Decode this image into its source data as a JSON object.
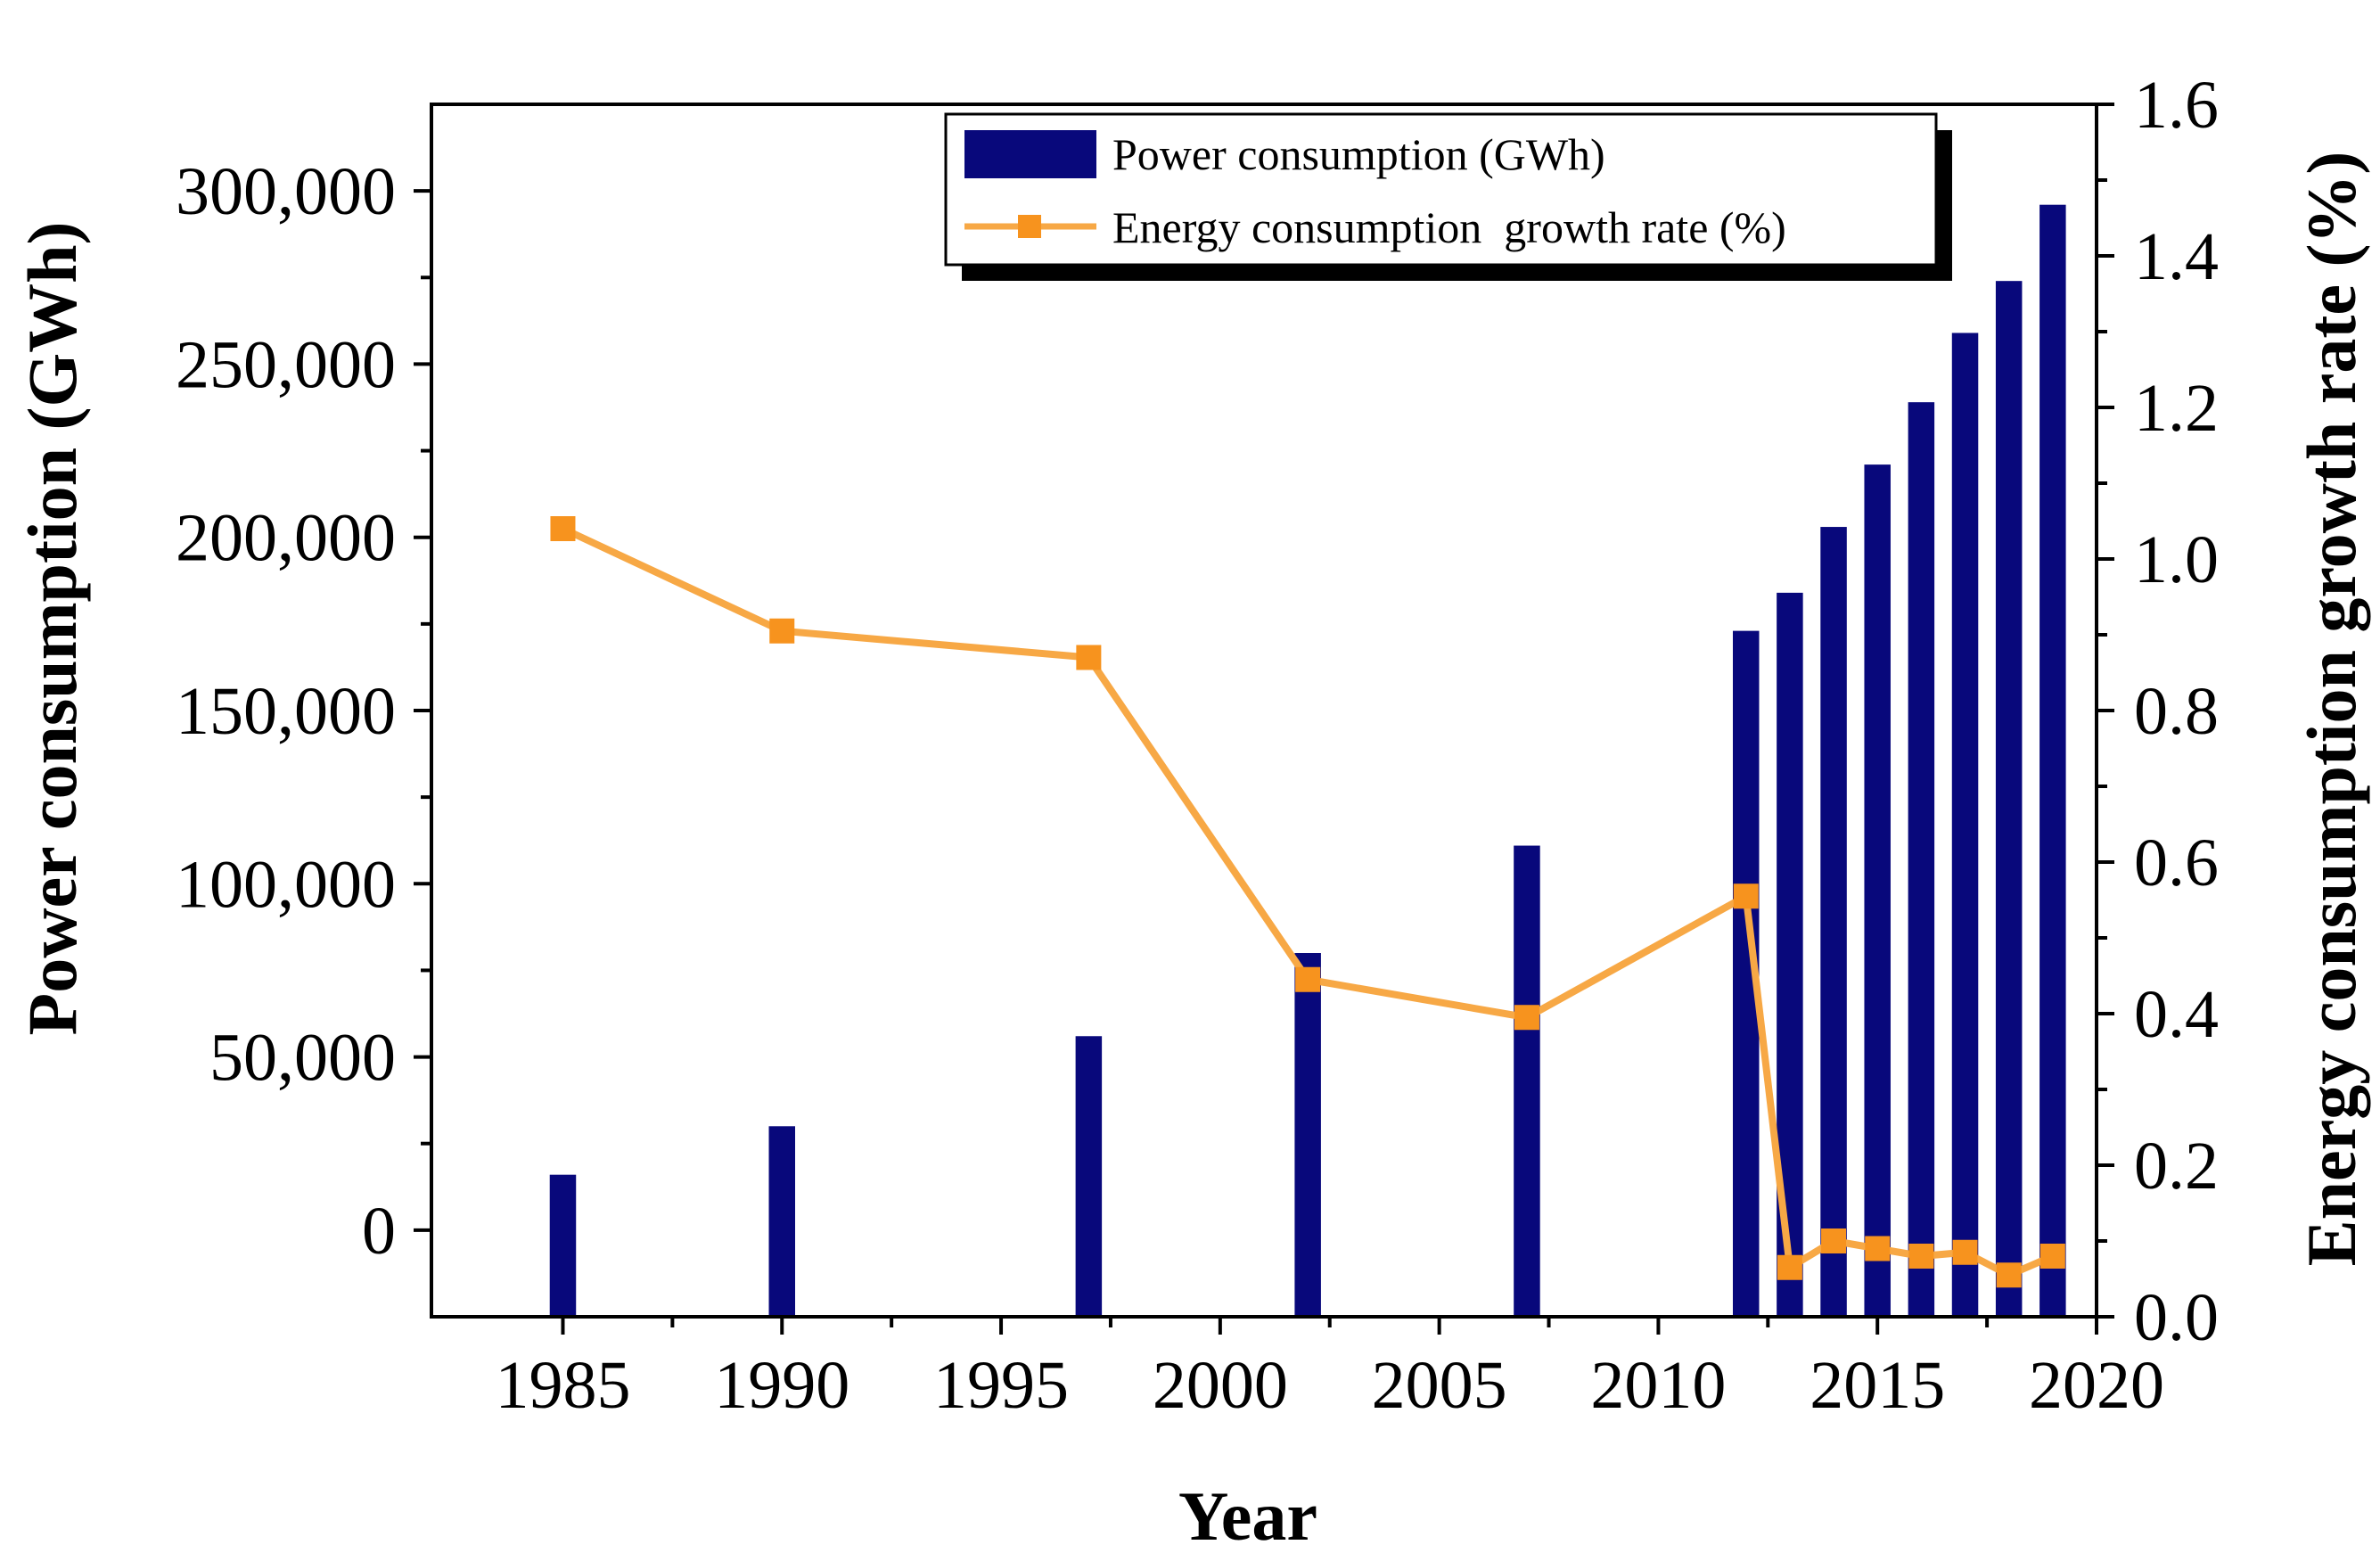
{
  "chart_data": {
    "type": "bar+line",
    "x": {
      "label": "Year",
      "range": [
        1982,
        2020
      ],
      "major_ticks": [
        1985,
        1990,
        1995,
        2000,
        2005,
        2010,
        2015,
        2020
      ],
      "minor_ticks": [
        1987.5,
        1992.5,
        1997.5,
        2002.5,
        2007.5,
        2012.5,
        2017.5
      ]
    },
    "y_left": {
      "label": "Power consumption (GWh)",
      "range": [
        -25000,
        325000
      ],
      "ticks": [
        0,
        50000,
        100000,
        150000,
        200000,
        250000,
        300000
      ],
      "tick_labels": [
        "0",
        "50,000",
        "100,000",
        "150,000",
        "200,000",
        "250,000",
        "300,000"
      ],
      "minor_ticks": [
        25000,
        75000,
        125000,
        175000,
        225000,
        275000
      ]
    },
    "y_right": {
      "label": "Energy consumption  growth rate (%)",
      "range": [
        0.0,
        1.6
      ],
      "ticks": [
        0.0,
        0.2,
        0.4,
        0.6,
        0.8,
        1.0,
        1.2,
        1.4,
        1.6
      ],
      "tick_labels": [
        "0.0",
        "0.2",
        "0.4",
        "0.6",
        "0.8",
        "1.0",
        "1.2",
        "1.4",
        "1.6"
      ],
      "minor_ticks": [
        0.1,
        0.3,
        0.5,
        0.7,
        0.9,
        1.1,
        1.3,
        1.5
      ]
    },
    "bar_width_years": 0.6,
    "series": [
      {
        "name": "Power consumption (GWh)",
        "type": "bar",
        "axis": "left",
        "color": "#08087b",
        "x": [
          1985,
          1990,
          1997,
          2002,
          2007,
          2012,
          2013,
          2014,
          2015,
          2016,
          2017,
          2018,
          2019
        ],
        "values": [
          16000,
          30000,
          56000,
          80000,
          111000,
          173000,
          184000,
          203000,
          221000,
          239000,
          259000,
          274000,
          296000
        ]
      },
      {
        "name": "Energy consumption  growth rate (%)",
        "type": "line",
        "axis": "right",
        "color": "#f7a845",
        "marker_color": "#f7931e",
        "x": [
          1985,
          1990,
          1997,
          2002,
          2007,
          2012,
          2013,
          2014,
          2015,
          2016,
          2017,
          2018,
          2019
        ],
        "values": [
          1.04,
          0.905,
          0.87,
          0.445,
          0.395,
          0.555,
          0.065,
          0.1,
          0.09,
          0.08,
          0.085,
          0.055,
          0.08
        ]
      }
    ],
    "legend": {
      "position": "top-right",
      "items": [
        {
          "label": "Power consumption (GWh)",
          "color": "#08087b",
          "kind": "bar"
        },
        {
          "label": "Energy consumption  growth rate (%)",
          "color": "#f7a845",
          "kind": "line"
        }
      ]
    }
  }
}
